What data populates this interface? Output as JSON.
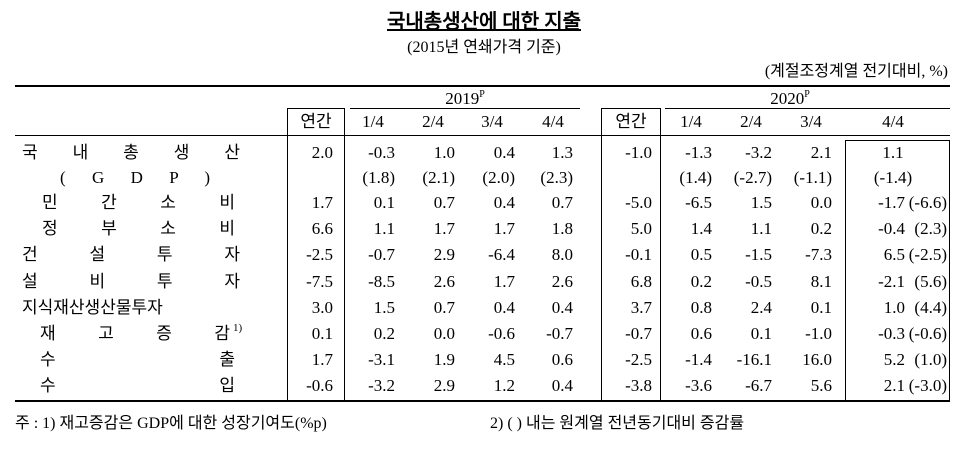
{
  "header": {
    "title": "국내총생산에 대한 지출",
    "subtitle": "(2015년 연쇄가격 기준)",
    "unit": "(계절조정계열 전기대비, %)"
  },
  "table": {
    "years": [
      {
        "label": "2019",
        "sup": "P"
      },
      {
        "label": "2020",
        "sup": "P"
      }
    ],
    "columns": [
      "연간",
      "1/4",
      "2/4",
      "3/4",
      "4/4",
      "연간",
      "1/4",
      "2/4",
      "3/4",
      "4/4"
    ],
    "rows": [
      {
        "label": "국 내 총 생 산",
        "values": [
          "2.0",
          "-0.3",
          "1.0",
          "0.4",
          "1.3",
          "-1.0",
          "-1.3",
          "-3.2",
          "2.1",
          "1.1"
        ]
      },
      {
        "label": "( G D P )",
        "values": [
          null,
          "(1.8)",
          "(2.1)",
          "(2.0)",
          "(2.3)",
          null,
          "(1.4)",
          "(-2.7)",
          "(-1.1)",
          "(-1.4)"
        ]
      },
      {
        "label": "민 간 소 비",
        "values": [
          "1.7",
          "0.1",
          "0.7",
          "0.4",
          "0.7",
          "-5.0",
          "-6.5",
          "1.5",
          "0.0",
          "-1.7"
        ],
        "yoy": "(-6.6)"
      },
      {
        "label": "정 부 소 비",
        "values": [
          "6.6",
          "1.1",
          "1.7",
          "1.7",
          "1.8",
          "5.0",
          "1.4",
          "1.1",
          "0.2",
          "-0.4"
        ],
        "yoy": "(2.3)"
      },
      {
        "label": "건 설 투 자",
        "values": [
          "-2.5",
          "-0.7",
          "2.9",
          "-6.4",
          "8.0",
          "-0.1",
          "0.5",
          "-1.5",
          "-7.3",
          "6.5"
        ],
        "yoy": "(-2.5)"
      },
      {
        "label": "설 비 투 자",
        "values": [
          "-7.5",
          "-8.5",
          "2.6",
          "1.7",
          "2.6",
          "6.8",
          "0.2",
          "-0.5",
          "8.1",
          "-2.1"
        ],
        "yoy": "(5.6)"
      },
      {
        "label": "지식재산생산물투자",
        "values": [
          "3.0",
          "1.5",
          "0.7",
          "0.4",
          "0.4",
          "3.7",
          "0.8",
          "2.4",
          "0.1",
          "1.0"
        ],
        "yoy": "(4.4)"
      },
      {
        "label": "재 고 증 감",
        "note": "1)",
        "values": [
          "0.1",
          "0.2",
          "0.0",
          "-0.6",
          "-0.7",
          "-0.7",
          "0.6",
          "0.1",
          "-1.0",
          "-0.3"
        ],
        "yoy": "(-0.6)"
      },
      {
        "label": "수 출",
        "values": [
          "1.7",
          "-3.1",
          "1.9",
          "4.5",
          "0.6",
          "-2.5",
          "-1.4",
          "-16.1",
          "16.0",
          "5.2"
        ],
        "yoy": "(1.0)"
      },
      {
        "label": "수 입",
        "values": [
          "-0.6",
          "-3.2",
          "2.9",
          "1.2",
          "0.4",
          "-3.8",
          "-3.6",
          "-6.7",
          "5.6",
          "2.1"
        ],
        "yoy": "(-3.0)"
      }
    ]
  },
  "footnotes": [
    "주 : 1) 재고증감은 GDP에 대한 성장기여도(%p)",
    "2) (    ) 내는 원계열 전년동기대비 증감률"
  ]
}
